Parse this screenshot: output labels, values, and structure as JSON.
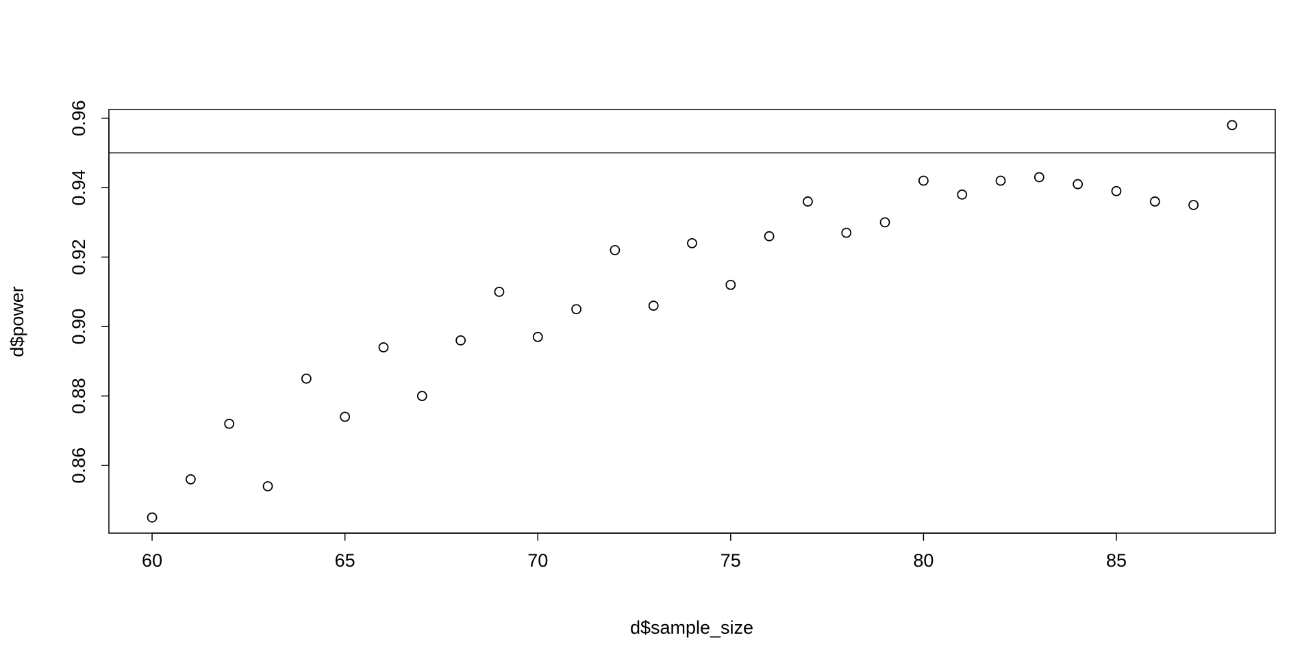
{
  "chart_data": {
    "type": "scatter",
    "x_label": "d$sample_size",
    "y_label": "d$power",
    "x": [
      60,
      61,
      62,
      63,
      64,
      65,
      66,
      67,
      68,
      69,
      70,
      71,
      72,
      73,
      74,
      75,
      76,
      77,
      78,
      79,
      80,
      81,
      82,
      83,
      84,
      85,
      86,
      87,
      88
    ],
    "values": [
      0.845,
      0.856,
      0.872,
      0.854,
      0.885,
      0.874,
      0.894,
      0.88,
      0.896,
      0.91,
      0.897,
      0.905,
      0.922,
      0.906,
      0.924,
      0.912,
      0.926,
      0.936,
      0.927,
      0.93,
      0.942,
      0.938,
      0.942,
      0.943,
      0.941,
      0.939,
      0.936,
      0.935,
      0.958
    ],
    "color": "#000000",
    "xlim": [
      58.88,
      89.12
    ],
    "ylim": [
      0.8405,
      0.9625
    ],
    "xticks": [
      60,
      65,
      70,
      75,
      80,
      85
    ],
    "yticks": [
      {
        "value": 0.86,
        "label": "0.86"
      },
      {
        "value": 0.88,
        "label": "0.88"
      },
      {
        "value": 0.9,
        "label": "0.90"
      },
      {
        "value": 0.92,
        "label": "0.92"
      },
      {
        "value": 0.94,
        "label": "0.94"
      },
      {
        "value": 0.96,
        "label": "0.96"
      }
    ],
    "hline": 0.95,
    "grid": false
  }
}
